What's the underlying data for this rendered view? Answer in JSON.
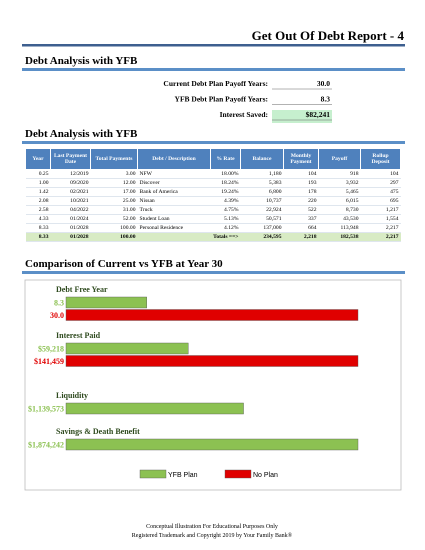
{
  "header": {
    "title": "Get Out Of Debt Report - 4"
  },
  "summary": {
    "title": "Debt Analysis with YFB",
    "rows": [
      {
        "label": "Current Debt Plan Payoff Years:",
        "value": "30.0"
      },
      {
        "label": "YFB Debt Plan Payoff Years:",
        "value": "8.3"
      },
      {
        "label": "Interest Saved:",
        "value": "$82,241"
      }
    ]
  },
  "table": {
    "title": "Debt Analysis with YFB",
    "columns": [
      "Year",
      "Last Payment Date",
      "Total Payments",
      "Debt / Description",
      "% Rate",
      "Balance",
      "Monthly Payment",
      "Payoff",
      "Rollup Deposit"
    ],
    "rows": [
      [
        "0.25",
        "12/2019",
        "3.00",
        "NFW",
        "18.00%",
        "1,180",
        "104",
        "918",
        "104"
      ],
      [
        "1.00",
        "09/2020",
        "12.00",
        "Discover",
        "18.24%",
        "5,383",
        "193",
        "3,932",
        "297"
      ],
      [
        "1.42",
        "02/2021",
        "17.00",
        "Bank of America",
        "19.24%",
        "6,800",
        "178",
        "5,465",
        "475"
      ],
      [
        "2.08",
        "10/2021",
        "25.00",
        "Nissan",
        "4.39%",
        "10,737",
        "220",
        "6,015",
        "695"
      ],
      [
        "2.58",
        "04/2022",
        "31.00",
        "Truck",
        "4.75%",
        "22,924",
        "522",
        "8,730",
        "1,217"
      ],
      [
        "4.33",
        "01/2024",
        "52.00",
        "Student Loan",
        "5.13%",
        "50,571",
        "337",
        "43,530",
        "1,554"
      ],
      [
        "8.33",
        "01/2028",
        "100.00",
        "Personal Residence",
        "4.12%",
        "137,000",
        "664",
        "113,948",
        "2,217"
      ]
    ],
    "totals": {
      "year": "8.33",
      "date": "01/2028",
      "total_payments": "100.00",
      "label": "Totals ==>",
      "balance": "234,595",
      "monthly": "2,218",
      "payoff": "182,538",
      "rollup": "2,217"
    }
  },
  "chart_data": {
    "type": "bar",
    "title": "Comparison of Current vs YFB at Year 30",
    "categories": [
      "Debt Free Year",
      "Interest Paid",
      "Liquidity",
      "Savings & Death Benefit"
    ],
    "series": [
      {
        "name": "YFB Plan",
        "color": "#8cc152",
        "values": [
          8.3,
          59218,
          1139573,
          1874242
        ],
        "value_labels": [
          "8.3",
          "$59,218",
          "$1,139,573",
          "$1,874,242"
        ]
      },
      {
        "name": "No Plan",
        "color": "#e00000",
        "values": [
          30,
          141459,
          null,
          null
        ],
        "value_labels": [
          "30.0",
          "$141,459",
          null,
          null
        ]
      }
    ]
  },
  "footer": {
    "lines": [
      "Conceptual Illustration For Educational Purposes Only",
      "Registered Trademark and Copyright 2019 by Your Family Bank®"
    ]
  }
}
